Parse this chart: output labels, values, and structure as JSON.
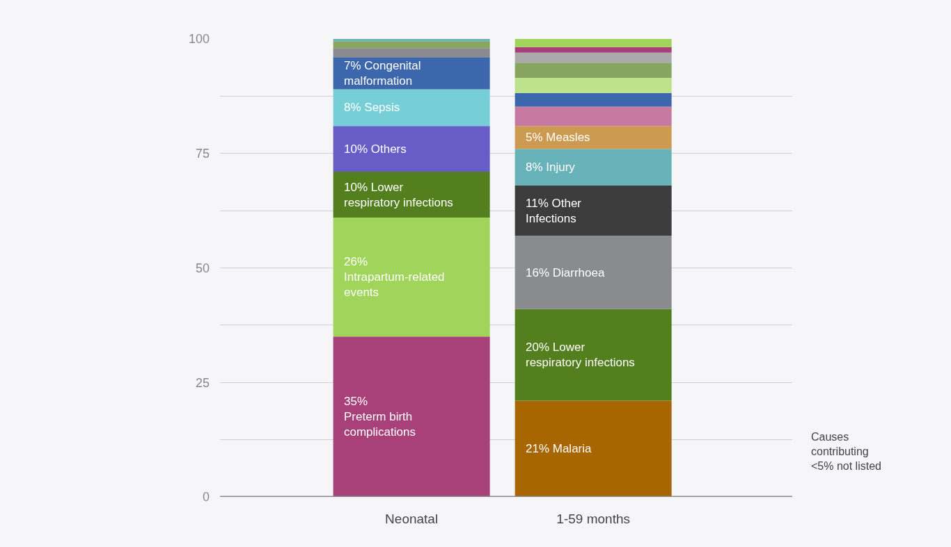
{
  "chart_data": {
    "type": "bar",
    "stacked": true,
    "categories": [
      "Neonatal",
      "1-59 months"
    ],
    "series": [
      {
        "colors": [
          "#a84079",
          "#a86600"
        ],
        "values": [
          35,
          21
        ],
        "value_labels": [
          "35%\nPreterm birth\ncomplications",
          "21% Malaria"
        ]
      },
      {
        "colors": [
          "#a1d45b",
          "#537f1f"
        ],
        "values": [
          26,
          20
        ],
        "value_labels": [
          "26%\nIntrapartum-related\nevents",
          "20% Lower\nrespiratory infections"
        ]
      },
      {
        "colors": [
          "#537f1f",
          "#8a8b8e"
        ],
        "values": [
          10,
          16
        ],
        "value_labels": [
          "10% Lower\nrespiratory infections",
          "16% Diarrhoea"
        ]
      },
      {
        "colors": [
          "#665dc6",
          "#3c3c3c"
        ],
        "values": [
          10,
          11
        ],
        "value_labels": [
          "10% Others",
          "11% Other\nInfections"
        ]
      },
      {
        "colors": [
          "#76cfd6",
          "#68b2b9"
        ],
        "values": [
          8,
          8
        ],
        "value_labels": [
          "8% Sepsis",
          "8% Injury"
        ]
      },
      {
        "colors": [
          "#3d67ac",
          "#cc9a50"
        ],
        "values": [
          7,
          5
        ],
        "value_labels": [
          "7% Congenital\nmalformation",
          "5% Measles"
        ]
      },
      {
        "colors": [
          "#8a8b8e",
          "#c679a1"
        ],
        "values": [
          2,
          4.2
        ],
        "value_labels": [
          null,
          null
        ]
      },
      {
        "colors": [
          "#87a55f",
          "#3d67ac"
        ],
        "values": [
          1.5,
          3
        ],
        "value_labels": [
          null,
          null
        ]
      },
      {
        "colors": [
          "#68b2b9",
          "#bce28c"
        ],
        "values": [
          0.5,
          3.3
        ],
        "value_labels": [
          null,
          null
        ]
      },
      {
        "colors": [
          null,
          "#87a55f"
        ],
        "values": [
          null,
          3.3
        ],
        "value_labels": [
          null,
          null
        ]
      },
      {
        "colors": [
          null,
          "#aaaaab"
        ],
        "values": [
          null,
          2.2
        ],
        "value_labels": [
          null,
          null
        ]
      },
      {
        "colors": [
          null,
          "#a84079"
        ],
        "values": [
          null,
          1.2
        ],
        "value_labels": [
          null,
          null
        ]
      },
      {
        "colors": [
          null,
          "#a1d45b"
        ],
        "values": [
          null,
          1.8
        ],
        "value_labels": [
          null,
          null
        ]
      }
    ],
    "ylim": [
      0,
      100
    ],
    "yticks": [
      0,
      {
        "value": 12.5,
        "label": null
      },
      25,
      {
        "value": 37.5,
        "label": null
      },
      50,
      {
        "value": 62.5,
        "label": null
      },
      75,
      {
        "value": 87.5,
        "label": null
      },
      100
    ],
    "grid": "y",
    "annotations": [
      "Causes\ncontributing\n<5% not listed"
    ]
  }
}
